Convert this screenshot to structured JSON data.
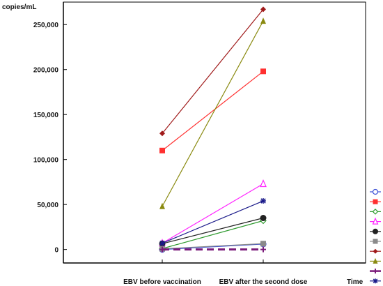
{
  "chart_data": {
    "type": "line",
    "ylabel": "copies/mL",
    "xlabel": "Time",
    "categories": [
      "EBV before vaccination",
      "EBV after the second dose"
    ],
    "ylim": [
      -15000,
      275000
    ],
    "yticks": [
      0,
      50000,
      100000,
      150000,
      200000,
      250000
    ],
    "ytick_labels": [
      "0",
      "50,000",
      "100,000",
      "150,000",
      "200,000",
      "250,000"
    ],
    "grid": false,
    "legend_position": "right",
    "series": [
      {
        "values": [
          0,
          6000
        ],
        "color": "#3a4fd6",
        "marker": "circle-open",
        "dash": false
      },
      {
        "values": [
          110000,
          198000
        ],
        "color": "#ff3030",
        "marker": "square",
        "dash": false
      },
      {
        "values": [
          1000,
          32000
        ],
        "color": "#2e9a2e",
        "marker": "diamond-open",
        "dash": false
      },
      {
        "values": [
          7000,
          73000
        ],
        "color": "#ff22ff",
        "marker": "triangle-open",
        "dash": false
      },
      {
        "values": [
          6500,
          35000
        ],
        "color": "#222222",
        "marker": "circle",
        "dash": false
      },
      {
        "values": [
          800,
          6500
        ],
        "color": "#8a8a8a",
        "marker": "square",
        "dash": false
      },
      {
        "values": [
          129000,
          267000
        ],
        "color": "#a01a1a",
        "marker": "diamond",
        "dash": false
      },
      {
        "values": [
          48000,
          254000
        ],
        "color": "#8a8a10",
        "marker": "triangle",
        "dash": false
      },
      {
        "values": [
          0,
          0
        ],
        "color": "#7a1a7a",
        "marker": "plus",
        "dash": true
      },
      {
        "values": [
          7000,
          54000
        ],
        "color": "#1a1a8a",
        "marker": "asterisk",
        "dash": false
      }
    ]
  }
}
